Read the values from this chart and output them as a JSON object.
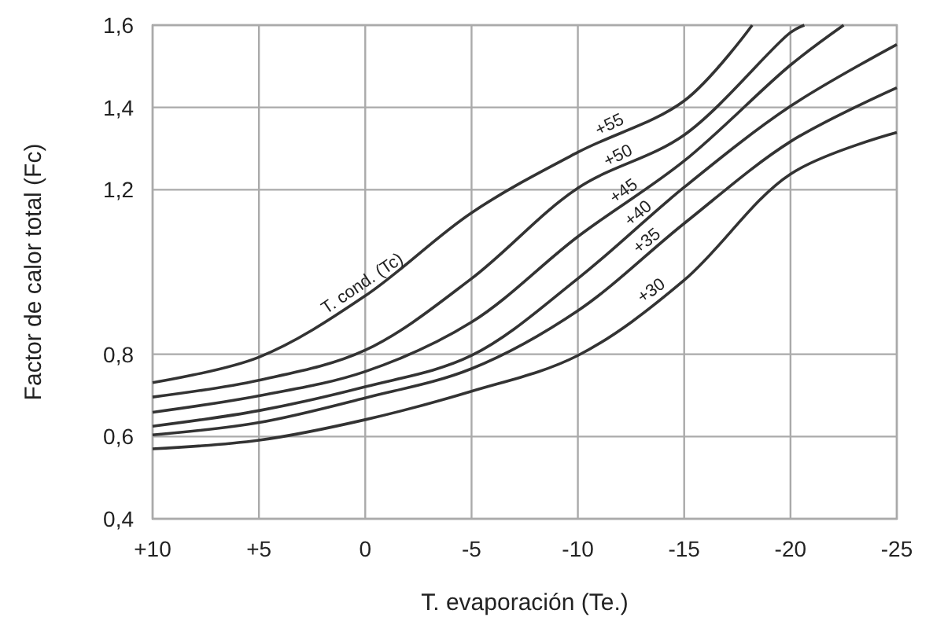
{
  "chart_data": {
    "type": "line",
    "xlabel": "T. evaporación (Te.)",
    "ylabel": "Factor de calor total (Fc)",
    "xlim": [
      10,
      -25
    ],
    "xticks": [
      {
        "value": 10,
        "label": "+10"
      },
      {
        "value": 5,
        "label": "+5"
      },
      0,
      -5,
      -10,
      -15,
      -20,
      -25
    ],
    "ylim": [
      0.4,
      1.6
    ],
    "yticks": [
      {
        "value": 0.4,
        "label": "0,4"
      },
      {
        "value": 0.6,
        "label": "0,6"
      },
      {
        "value": 0.8,
        "label": "0,8"
      },
      {
        "value": 1.2,
        "label": "1,2"
      },
      {
        "value": 1.4,
        "label": "1,4"
      },
      {
        "value": 1.6,
        "label": "1,6"
      }
    ],
    "grid": true,
    "marker": "none",
    "line_style": "solid",
    "series": [
      {
        "name": "+55",
        "color": "#333333",
        "x": [
          10,
          5,
          0,
          -5,
          -10,
          -15,
          -18.2
        ],
        "values": [
          0.731,
          0.793,
          0.942,
          1.144,
          1.291,
          1.416,
          1.6
        ]
      },
      {
        "name": "+50",
        "color": "#333333",
        "x": [
          10,
          5,
          0,
          -5,
          -10,
          -15,
          -20,
          -20.65
        ],
        "values": [
          0.696,
          0.737,
          0.81,
          0.984,
          1.204,
          1.333,
          1.582,
          1.6
        ]
      },
      {
        "name": "+45",
        "color": "#333333",
        "x": [
          10,
          5,
          0,
          -5,
          -10,
          -15,
          -20,
          -22.5
        ],
        "values": [
          0.659,
          0.699,
          0.758,
          0.878,
          1.086,
          1.27,
          1.503,
          1.6
        ]
      },
      {
        "name": "+40",
        "color": "#333333",
        "x": [
          10,
          5,
          0,
          -5,
          -10,
          -15,
          -20,
          -25
        ],
        "values": [
          0.625,
          0.663,
          0.721,
          0.797,
          0.984,
          1.206,
          1.403,
          1.553
        ]
      },
      {
        "name": "+35",
        "color": "#333333",
        "x": [
          10,
          5,
          0,
          -5,
          -10,
          -15,
          -20,
          -25
        ],
        "values": [
          0.604,
          0.634,
          0.694,
          0.765,
          0.906,
          1.118,
          1.317,
          1.448
        ]
      },
      {
        "name": "+30",
        "color": "#333333",
        "x": [
          10,
          5,
          0,
          -5,
          -10,
          -15,
          -20,
          -25
        ],
        "values": [
          0.57,
          0.591,
          0.641,
          0.71,
          0.797,
          0.98,
          1.238,
          1.339
        ]
      }
    ],
    "annotations": [
      {
        "text": "T. cond. (Tc)",
        "x": 0,
        "y": 0.942
      }
    ]
  }
}
